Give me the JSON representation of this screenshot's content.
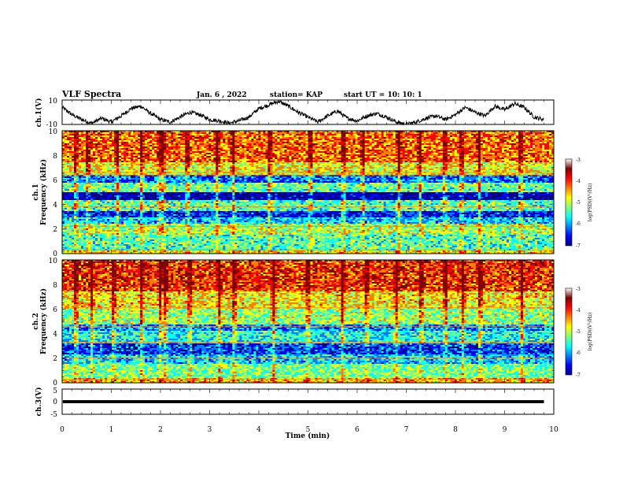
{
  "header": {
    "title": "VLF Spectra",
    "date": "Jan. 6 , 2022",
    "station": "station= KAP",
    "start": "start UT =  10: 10: 1"
  },
  "colormap": [
    "#00007f",
    "#0000ff",
    "#007fff",
    "#00ffff",
    "#7fff7f",
    "#ffff00",
    "#ff7f00",
    "#ff0000",
    "#7f0000"
  ],
  "chart_data": [
    {
      "type": "line",
      "panel": "ch1-waveform",
      "ylabel": "ch.1(V)",
      "ylim": [
        -10,
        10
      ],
      "y_ticks": [
        "10",
        "-10"
      ],
      "x_range": [
        0,
        10
      ],
      "x_extent_min": 9.8,
      "series": [
        {
          "x": [
            0,
            0.2,
            0.4,
            0.6,
            0.8,
            1.0,
            1.2,
            1.4,
            1.6,
            1.8,
            2.0,
            2.2,
            2.4,
            2.6,
            2.8,
            3.0,
            3.2,
            3.4,
            3.6,
            3.8,
            4.0,
            4.2,
            4.4,
            4.6,
            4.8,
            5.0,
            5.2,
            5.4,
            5.6,
            5.8,
            6.0,
            6.2,
            6.4,
            6.6,
            6.8,
            7.0,
            7.2,
            7.4,
            7.6,
            7.8,
            8.0,
            8.2,
            8.4,
            8.6,
            8.8,
            9.0,
            9.2,
            9.4,
            9.6,
            9.8
          ],
          "values": [
            4,
            -2,
            -6,
            -9,
            -5,
            -8,
            -3,
            3,
            5,
            -1,
            -6,
            -8,
            -4,
            0,
            -2,
            -6,
            -7,
            -9,
            -7,
            -4,
            3,
            6,
            9,
            5,
            0,
            -4,
            -8,
            -3,
            1,
            -5,
            -7,
            -3,
            -1,
            -4,
            -8,
            -10,
            -8,
            -5,
            -3,
            -6,
            -2,
            4,
            0,
            -3,
            5,
            2,
            7,
            4,
            -4,
            -6
          ]
        }
      ]
    },
    {
      "type": "heatmap",
      "panel": "ch1-spectrogram",
      "ylabel": "Frequency (kHz)",
      "channel_label": "ch.1",
      "ylim": [
        0,
        10
      ],
      "y_ticks": [
        "0",
        "2",
        "4",
        "6",
        "8",
        "10"
      ],
      "colorbar": {
        "label": "log(PSD)(V²/Hz)",
        "range": [
          -7,
          -3
        ],
        "ticks": [
          "-3",
          "-4",
          "-5",
          "-6",
          "-7"
        ]
      },
      "bands": [
        {
          "from": 0.0,
          "to": 0.3,
          "level": -4.5
        },
        {
          "from": 0.3,
          "to": 1.5,
          "level": -5.2
        },
        {
          "from": 1.5,
          "to": 2.5,
          "level": -4.8
        },
        {
          "from": 2.5,
          "to": 3.0,
          "level": -5.6
        },
        {
          "from": 3.0,
          "to": 3.4,
          "level": -6.3
        },
        {
          "from": 3.4,
          "to": 4.4,
          "level": -5.2
        },
        {
          "from": 4.4,
          "to": 5.0,
          "level": -6.7
        },
        {
          "from": 5.0,
          "to": 5.8,
          "level": -5.1
        },
        {
          "from": 5.8,
          "to": 6.4,
          "level": -6.0
        },
        {
          "from": 6.4,
          "to": 7.5,
          "level": -4.6
        },
        {
          "from": 7.5,
          "to": 10.0,
          "level": -4.0
        }
      ],
      "lines_khz": [
        0.3,
        2.2,
        3.8,
        6.4,
        6.6
      ],
      "bursts_min": [
        0.28,
        0.52,
        1.12,
        1.62,
        1.98,
        2.05,
        2.55,
        3.15,
        3.48,
        4.22,
        5.05,
        5.72,
        6.12,
        6.85,
        7.28,
        7.78,
        8.12,
        8.48,
        9.32
      ]
    },
    {
      "type": "heatmap",
      "panel": "ch2-spectrogram",
      "ylabel": "Frequency (kHz)",
      "channel_label": "ch.2",
      "ylim": [
        0,
        10
      ],
      "y_ticks": [
        "0",
        "2",
        "4",
        "6",
        "8",
        "10"
      ],
      "colorbar": {
        "label": "log(PSD)(V²/Hz)",
        "range": [
          -7,
          -3
        ],
        "ticks": [
          "-3",
          "-4",
          "-5",
          "-6",
          "-7"
        ]
      },
      "bands": [
        {
          "from": 0.0,
          "to": 0.4,
          "level": -4.3
        },
        {
          "from": 0.4,
          "to": 1.6,
          "level": -5.0
        },
        {
          "from": 1.6,
          "to": 2.3,
          "level": -5.6
        },
        {
          "from": 2.3,
          "to": 3.2,
          "level": -6.2
        },
        {
          "from": 3.2,
          "to": 4.2,
          "level": -5.4
        },
        {
          "from": 4.2,
          "to": 4.8,
          "level": -5.9
        },
        {
          "from": 4.8,
          "to": 6.0,
          "level": -4.9
        },
        {
          "from": 6.0,
          "to": 7.5,
          "level": -4.5
        },
        {
          "from": 7.5,
          "to": 10.0,
          "level": -3.8
        }
      ],
      "lines_khz": [
        0.3,
        2.0,
        3.3,
        4.6,
        6.1
      ],
      "bursts_min": [
        0.28,
        0.6,
        1.05,
        1.62,
        2.0,
        2.1,
        2.6,
        3.2,
        3.5,
        4.3,
        5.0,
        5.7,
        6.2,
        6.8,
        7.3,
        7.8,
        8.15,
        8.5,
        9.35
      ]
    },
    {
      "type": "line",
      "panel": "ch3-waveform",
      "ylabel": "ch.3(V)",
      "ylim": [
        -5,
        5
      ],
      "y_ticks": [
        "5",
        "0",
        "-5"
      ],
      "x_range": [
        0,
        10
      ],
      "xlabel": "Time (min)",
      "x_ticks": [
        "0",
        "1",
        "2",
        "3",
        "4",
        "5",
        "6",
        "7",
        "8",
        "9",
        "10"
      ],
      "series": [
        {
          "x": [
            0,
            9.8
          ],
          "values": [
            0,
            0
          ],
          "amplitude": 0.6
        }
      ]
    }
  ]
}
